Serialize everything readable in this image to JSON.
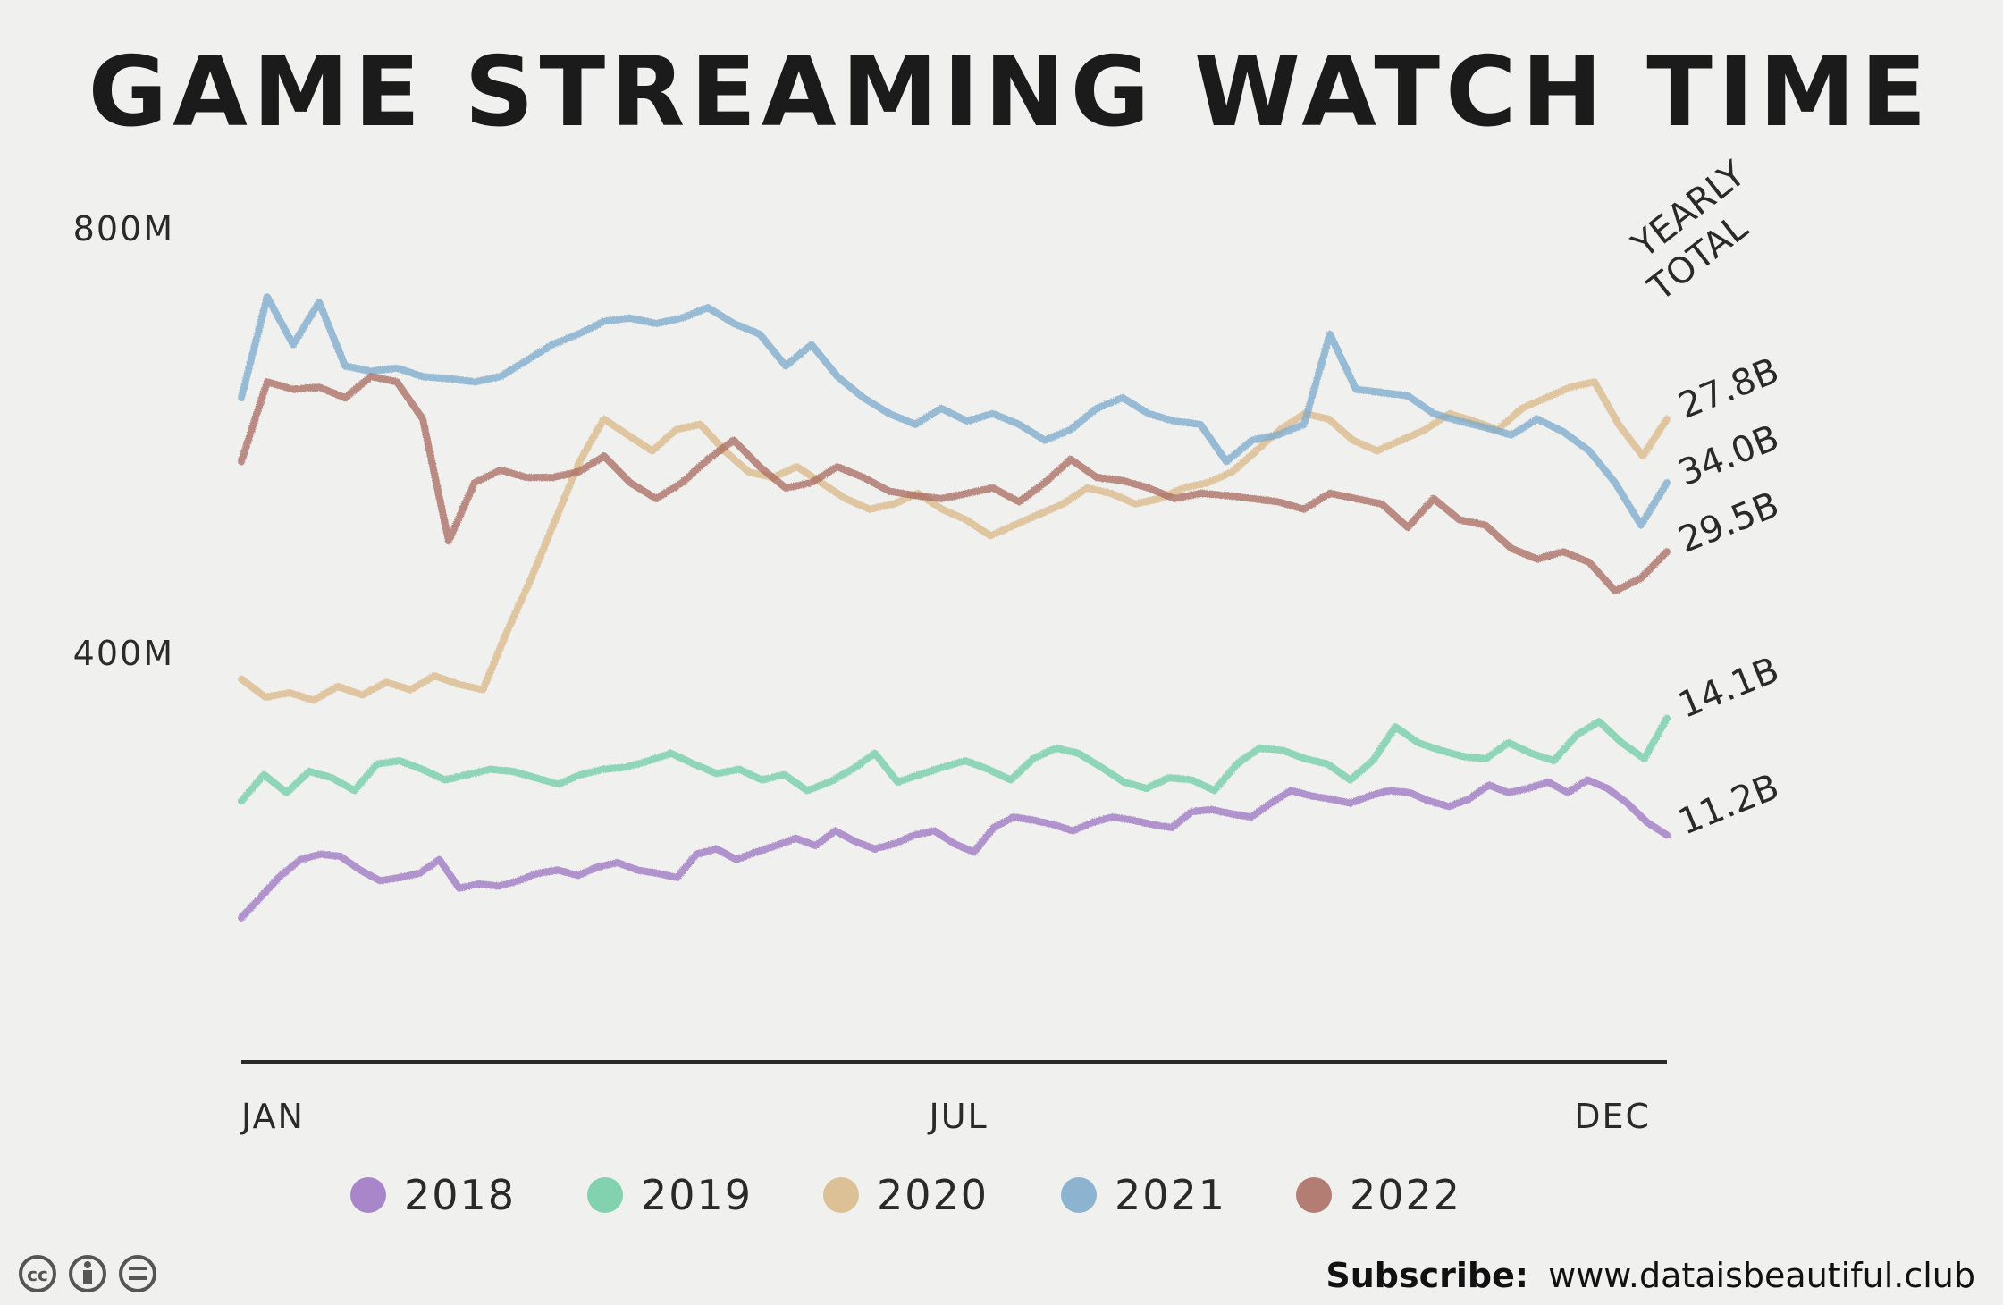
{
  "chart_data": {
    "type": "line",
    "title": "GAME STREAMING WATCH TIME",
    "ylim": [
      0,
      800
    ],
    "y_ticks": [
      {
        "value": 400,
        "label": "400M"
      },
      {
        "value": 800,
        "label": "800M"
      }
    ],
    "x_ticks": [
      {
        "week": 1,
        "label": "JAN"
      },
      {
        "week": 26,
        "label": "JUL"
      },
      {
        "week": 49,
        "label": "DEC"
      }
    ],
    "x_range": [
      1,
      51
    ],
    "annotation_header": [
      "YEARLY",
      "TOTAL"
    ],
    "legend_placement": "bottom",
    "series": [
      {
        "name": "2018",
        "color": "#9b73c2",
        "total": "11.2B",
        "values": [
          150,
          170,
          190,
          205,
          210,
          208,
          195,
          185,
          188,
          192,
          205,
          178,
          182,
          180,
          185,
          192,
          195,
          190,
          198,
          202,
          195,
          192,
          188,
          210,
          215,
          205,
          212,
          218,
          225,
          218,
          232,
          222,
          215,
          220,
          228,
          232,
          220,
          212,
          235,
          245,
          242,
          238,
          232,
          240,
          245,
          242,
          238,
          235,
          250,
          252,
          248,
          245,
          258,
          270,
          265,
          262,
          258,
          265,
          270,
          268,
          260,
          255,
          262,
          275,
          268,
          272,
          278,
          268,
          280,
          272,
          258,
          240,
          228
        ]
      },
      {
        "name": "2019",
        "color": "#6fcca5",
        "total": "14.1B",
        "values": [
          260,
          285,
          268,
          288,
          282,
          270,
          295,
          298,
          290,
          280,
          285,
          290,
          288,
          282,
          276,
          285,
          290,
          292,
          298,
          305,
          295,
          286,
          290,
          280,
          285,
          270,
          278,
          290,
          305,
          278,
          285,
          292,
          298,
          290,
          280,
          300,
          310,
          305,
          292,
          278,
          272,
          282,
          280,
          270,
          295,
          310,
          308,
          300,
          295,
          280,
          298,
          330,
          315,
          308,
          302,
          300,
          315,
          305,
          298,
          322,
          335,
          315,
          300,
          338
        ]
      },
      {
        "name": "2020",
        "color": "#d9b886",
        "total": "27.8B",
        "values": [
          375,
          358,
          362,
          355,
          368,
          360,
          372,
          365,
          378,
          370,
          365,
          420,
          470,
          525,
          580,
          620,
          605,
          590,
          610,
          615,
          590,
          570,
          565,
          575,
          560,
          545,
          535,
          540,
          550,
          535,
          525,
          510,
          520,
          530,
          540,
          555,
          550,
          540,
          545,
          555,
          560,
          570,
          590,
          610,
          625,
          620,
          600,
          590,
          600,
          610,
          625,
          618,
          610,
          630,
          640,
          650,
          655,
          615,
          585,
          620
        ]
      },
      {
        "name": "2021",
        "color": "#7aa9cb",
        "total": "34.0B",
        "values": [
          640,
          735,
          690,
          730,
          670,
          665,
          668,
          660,
          658,
          655,
          660,
          675,
          690,
          700,
          712,
          715,
          710,
          715,
          725,
          710,
          700,
          670,
          690,
          660,
          640,
          625,
          615,
          630,
          618,
          625,
          615,
          600,
          610,
          630,
          640,
          625,
          618,
          615,
          580,
          600,
          605,
          615,
          700,
          648,
          645,
          642,
          625,
          618,
          612,
          605,
          620,
          608,
          590,
          560,
          520,
          560
        ]
      },
      {
        "name": "2022",
        "color": "#a8685e",
        "total": "29.5B",
        "values": [
          580,
          655,
          648,
          650,
          640,
          660,
          655,
          620,
          505,
          560,
          572,
          565,
          565,
          570,
          585,
          560,
          545,
          560,
          582,
          600,
          575,
          555,
          560,
          575,
          565,
          552,
          548,
          545,
          550,
          555,
          542,
          560,
          582,
          565,
          562,
          555,
          545,
          550,
          548,
          545,
          542,
          535,
          550,
          545,
          540,
          518,
          545,
          525,
          520,
          498,
          488,
          495,
          485,
          458,
          470,
          495
        ]
      }
    ]
  },
  "footer": {
    "subscribe_label": "Subscribe:",
    "url": "www.dataisbeautiful.club",
    "license_icons": [
      "cc-icon",
      "by-icon",
      "nd-icon"
    ]
  }
}
